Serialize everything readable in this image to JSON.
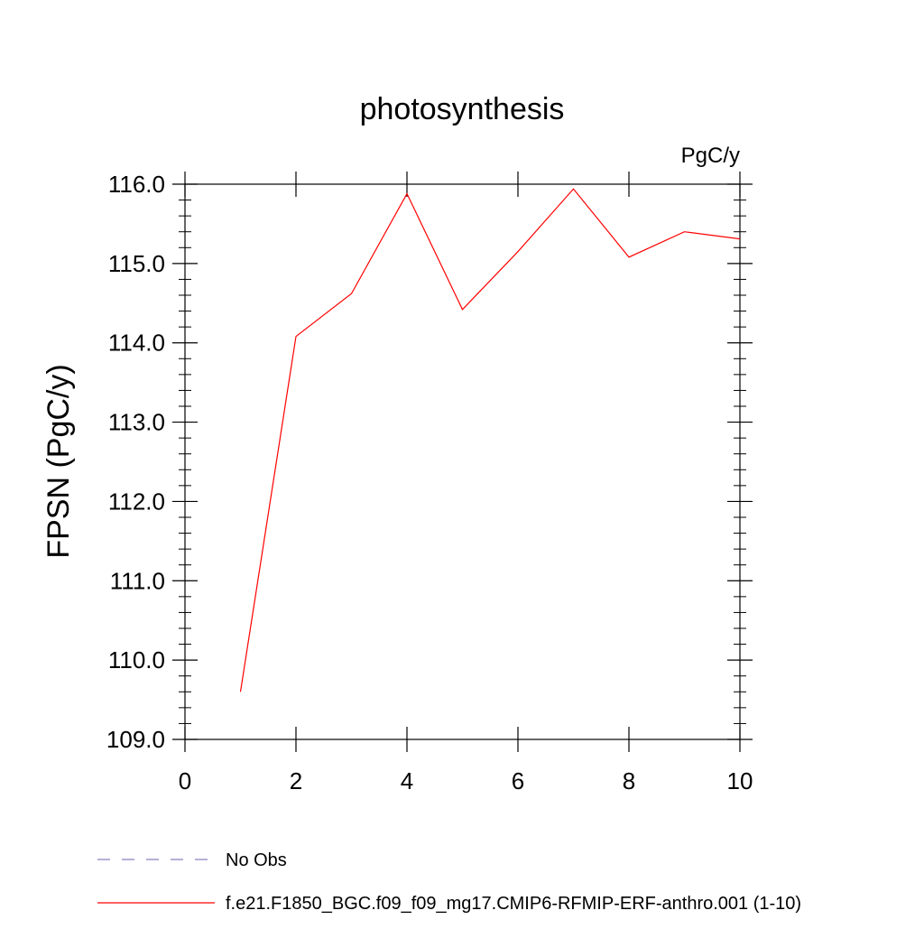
{
  "chart_data": {
    "type": "line",
    "title": "photosynthesis",
    "units_label": "PgC/y",
    "xlabel": "",
    "ylabel": "FPSN  (PgC/y)",
    "xlim": [
      0,
      10
    ],
    "ylim": [
      109.0,
      116.0
    ],
    "x_ticks": [
      0,
      2,
      4,
      6,
      8,
      10
    ],
    "x_tick_labels": [
      "0",
      "2",
      "4",
      "6",
      "8",
      "10"
    ],
    "y_ticks": [
      109.0,
      110.0,
      111.0,
      112.0,
      113.0,
      114.0,
      115.0,
      116.0
    ],
    "y_tick_labels": [
      "109.0",
      "110.0",
      "111.0",
      "112.0",
      "113.0",
      "114.0",
      "115.0",
      "116.0"
    ],
    "grid": false,
    "legend_position": "bottom",
    "series": [
      {
        "name": "f.e21.F1850_BGC.f09_f09_mg17.CMIP6-RFMIP-ERF-anthro.001 (1-10)",
        "color": "#ff0000",
        "x": [
          1,
          2,
          3,
          4,
          5,
          6,
          7,
          8,
          9,
          10
        ],
        "values": [
          109.6,
          114.08,
          114.62,
          115.88,
          114.42,
          115.15,
          115.94,
          115.08,
          115.4,
          115.31
        ]
      }
    ],
    "legend": [
      {
        "label": "No Obs",
        "color": "#8b7fc0",
        "dash": true
      },
      {
        "label": "f.e21.F1850_BGC.f09_f09_mg17.CMIP6-RFMIP-ERF-anthro.001 (1-10)",
        "color": "#ff0000",
        "dash": false
      }
    ]
  }
}
